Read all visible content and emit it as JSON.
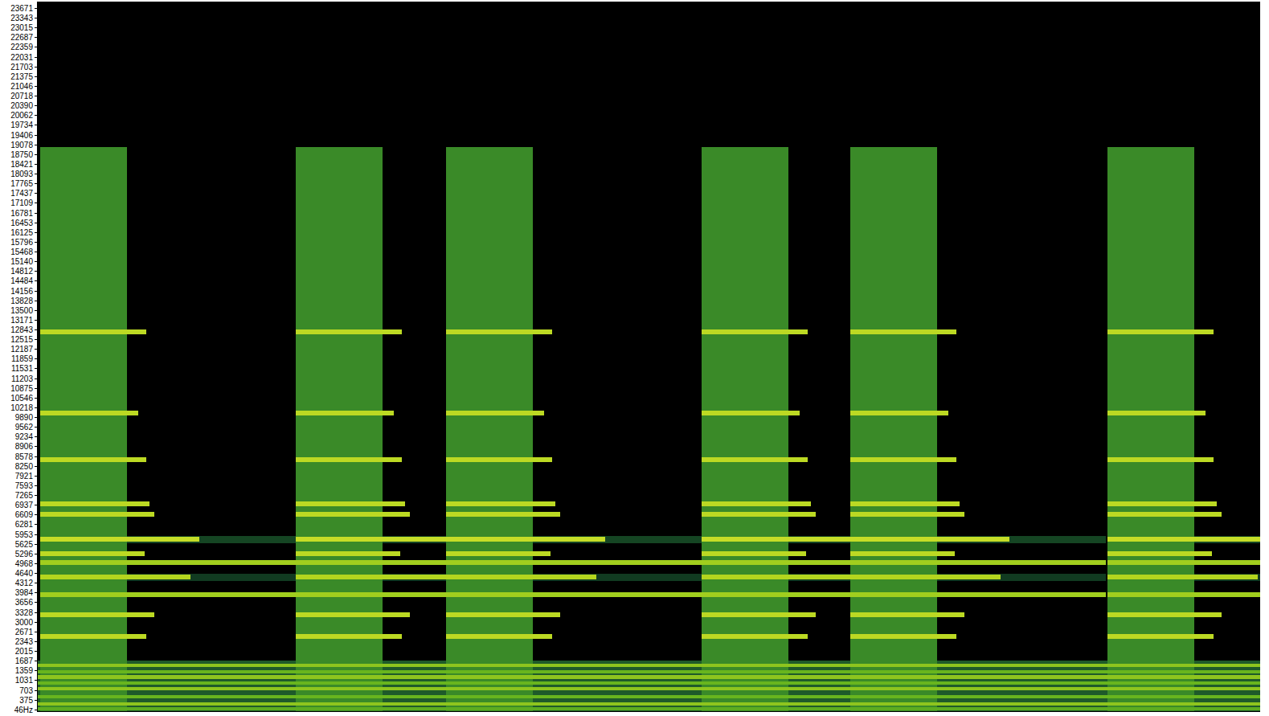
{
  "chart_data": {
    "type": "heatmap",
    "tick_labels": "y",
    "xlim": [
      -3,
      1518
    ],
    "ylim": [
      0,
      23900
    ],
    "yticks": [
      {
        "value": 46,
        "label": "46Hz"
      },
      375,
      703,
      1031,
      1359,
      1687,
      2015,
      2343,
      2671,
      3000,
      3328,
      3656,
      3984,
      4312,
      4640,
      4968,
      5296,
      5625,
      5953,
      6281,
      6609,
      6937,
      7265,
      7593,
      7921,
      8250,
      8578,
      8906,
      9234,
      9562,
      9890,
      10218,
      10546,
      10875,
      11203,
      11531,
      11859,
      12187,
      12515,
      12843,
      13171,
      13500,
      13828,
      14156,
      14484,
      14812,
      15140,
      15468,
      15796,
      16125,
      16453,
      16781,
      17109,
      17437,
      17765,
      18093,
      18421,
      18750,
      19078,
      19406,
      19734,
      20062,
      20390,
      20718,
      21046,
      21375,
      21703,
      22031,
      22359,
      22687,
      23015,
      23343,
      23671
    ],
    "zlim": [
      0,
      100
    ],
    "bursts": [
      0,
      318,
      505,
      823,
      1008,
      1328
    ],
    "noise": {
      "fmax": 19000,
      "duration": 108,
      "level": 55
    },
    "tones": [
      {
        "freq": 12764,
        "bandwidth": 160,
        "duration": 132,
        "level": 90
      },
      {
        "freq": 10031,
        "bandwidth": 160,
        "duration": 122,
        "level": 90
      },
      {
        "freq": 8462,
        "bandwidth": 160,
        "duration": 132,
        "level": 90
      },
      {
        "freq": 6973,
        "bandwidth": 160,
        "duration": 136,
        "level": 90
      },
      {
        "freq": 6621,
        "bandwidth": 160,
        "duration": 142,
        "level": 90
      },
      {
        "freq": 5783,
        "bandwidth": 160,
        "duration": 198,
        "level": 92
      },
      {
        "freq": 5783,
        "bandwidth": 240,
        "duration": 318,
        "level": 38
      },
      {
        "freq": 5296,
        "bandwidth": 160,
        "duration": 130,
        "level": 90
      },
      {
        "freq": 4998,
        "bandwidth": 160,
        "duration": 318,
        "level": 85
      },
      {
        "freq": 4511,
        "bandwidth": 160,
        "duration": 187,
        "level": 88
      },
      {
        "freq": 4511,
        "bandwidth": 240,
        "duration": 318,
        "level": 35
      },
      {
        "freq": 3916,
        "bandwidth": 160,
        "duration": 318,
        "level": 85
      },
      {
        "freq": 3239,
        "bandwidth": 160,
        "duration": 142,
        "level": 90
      },
      {
        "freq": 2508,
        "bandwidth": 160,
        "duration": 132,
        "level": 90
      }
    ],
    "drones": [
      {
        "freq": 850,
        "bandwidth": 1700,
        "level": 45
      },
      {
        "freq": 1550,
        "bandwidth": 110,
        "level": 82
      },
      {
        "freq": 1330,
        "bandwidth": 110,
        "level": 76
      },
      {
        "freq": 1150,
        "bandwidth": 110,
        "level": 82
      },
      {
        "freq": 950,
        "bandwidth": 110,
        "level": 76
      },
      {
        "freq": 750,
        "bandwidth": 110,
        "level": 82
      },
      {
        "freq": 500,
        "bandwidth": 110,
        "level": 76
      },
      {
        "freq": 250,
        "bandwidth": 110,
        "level": 82
      },
      {
        "freq": 80,
        "bandwidth": 110,
        "level": 72
      }
    ]
  }
}
